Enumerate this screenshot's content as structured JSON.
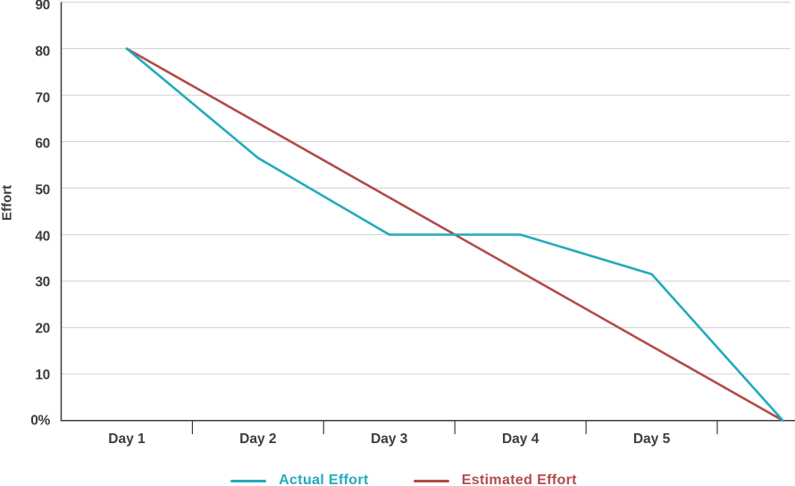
{
  "chart_data": {
    "type": "line",
    "title": "",
    "xlabel": "",
    "ylabel": "Effort",
    "categories": [
      "Day 1",
      "Day 2",
      "Day 3",
      "Day 4",
      "Day 5",
      ""
    ],
    "y_axis": {
      "min": 0,
      "max": 90,
      "step": 10,
      "tick_labels": [
        "0%",
        "10",
        "20",
        "30",
        "40",
        "50",
        "60",
        "70",
        "80",
        "90"
      ]
    },
    "series": [
      {
        "name": "Actual Effort",
        "color": "#22abbd",
        "values": [
          80,
          56.5,
          40,
          40,
          31.5,
          0
        ]
      },
      {
        "name": "Estimated Effort",
        "color": "#b14c49",
        "values": [
          80,
          64,
          48,
          32,
          16,
          0
        ]
      }
    ],
    "grid": "horizontal",
    "legend_position": "bottom",
    "colors": {
      "axis": "#3d3d3d",
      "gridline": "#d6d3d3",
      "tick_label": "#3d3d3d",
      "background": "#ffffff"
    }
  }
}
